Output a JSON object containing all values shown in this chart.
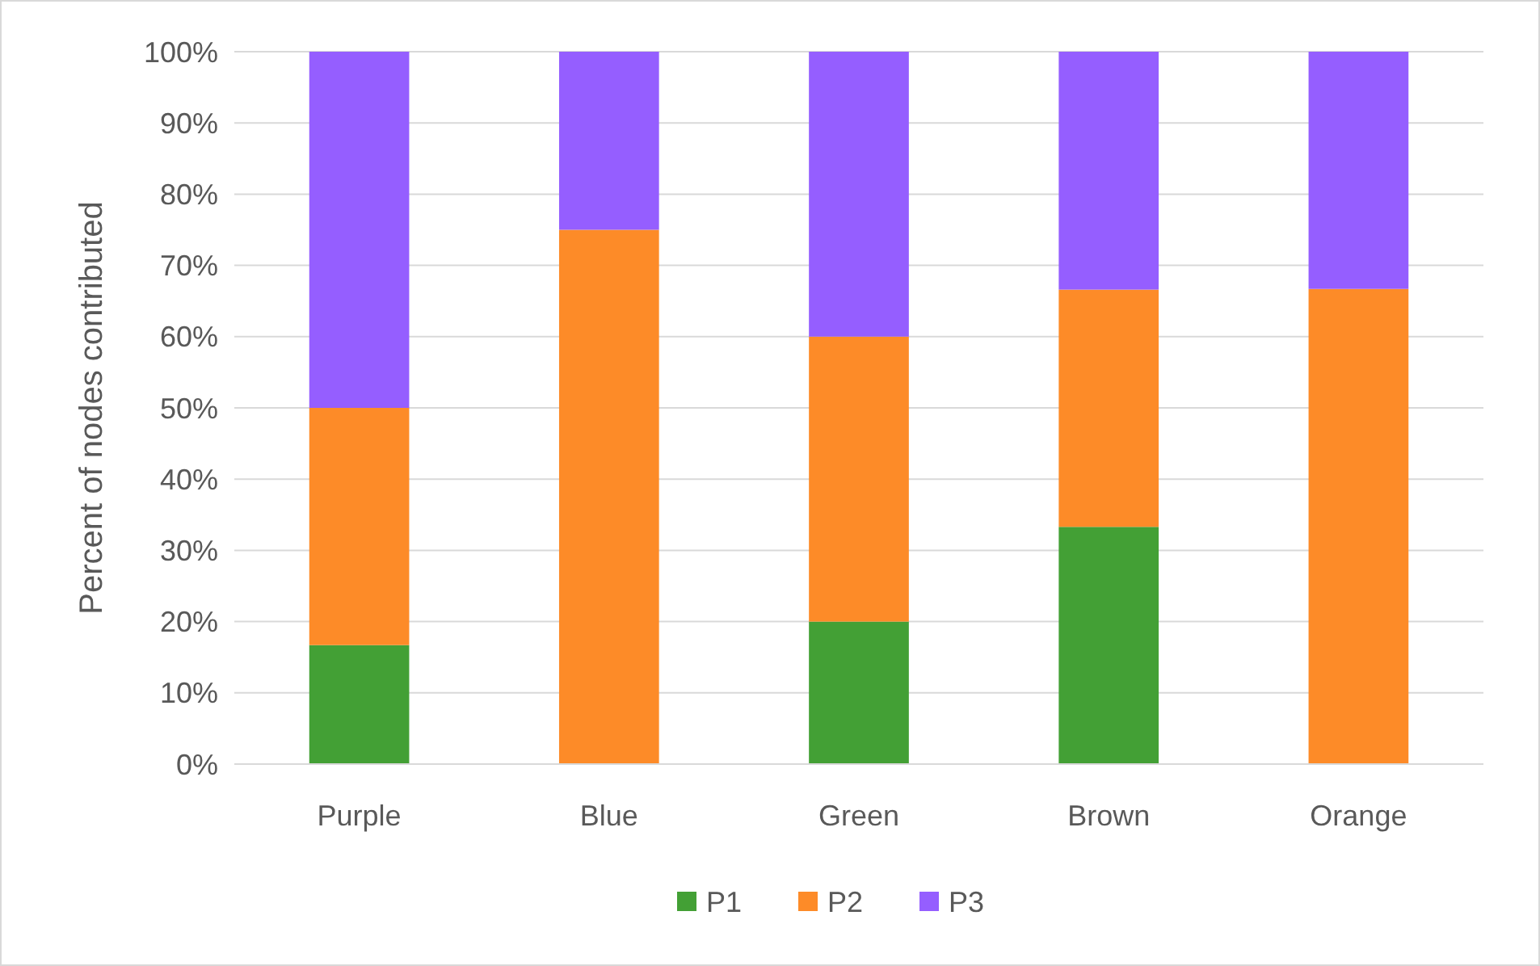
{
  "chart_data": {
    "type": "bar",
    "stacked": true,
    "ylabel": "Percent of nodes contributed",
    "categories": [
      "Purple",
      "Blue",
      "Green",
      "Brown",
      "Orange"
    ],
    "series": [
      {
        "name": "P1",
        "color": "#43a035",
        "values": [
          16.7,
          0,
          20,
          33.3,
          0
        ]
      },
      {
        "name": "P2",
        "color": "#fd8b28",
        "values": [
          33.3,
          75,
          40,
          33.3,
          66.7
        ]
      },
      {
        "name": "P3",
        "color": "#955eff",
        "values": [
          50,
          25,
          40,
          33.4,
          33.3
        ]
      }
    ],
    "ylim": [
      0,
      100
    ],
    "yticks": [
      {
        "value": 0,
        "label": "0%"
      },
      {
        "value": 10,
        "label": "10%"
      },
      {
        "value": 20,
        "label": "20%"
      },
      {
        "value": 30,
        "label": "30%"
      },
      {
        "value": 40,
        "label": "40%"
      },
      {
        "value": 50,
        "label": "50%"
      },
      {
        "value": 60,
        "label": "60%"
      },
      {
        "value": 70,
        "label": "70%"
      },
      {
        "value": 80,
        "label": "80%"
      },
      {
        "value": 90,
        "label": "90%"
      },
      {
        "value": 100,
        "label": "100%"
      }
    ],
    "grid": "y",
    "legend": "bottom"
  }
}
